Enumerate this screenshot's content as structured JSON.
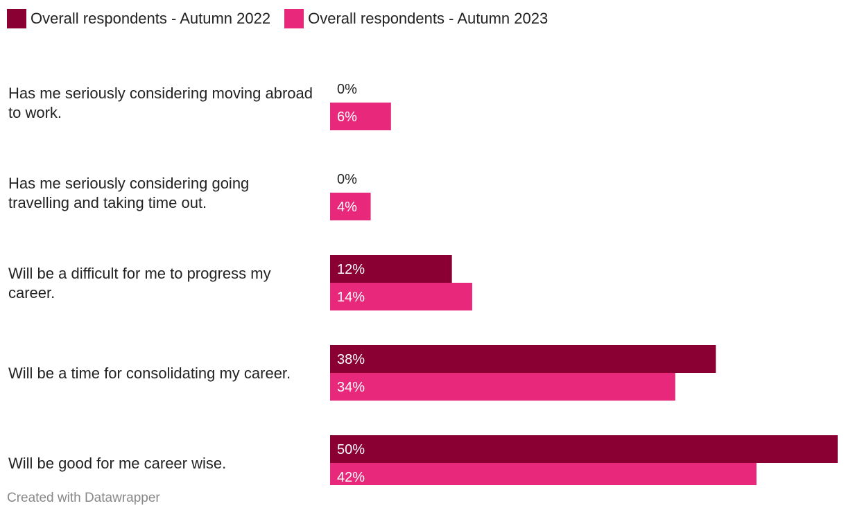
{
  "legend": [
    {
      "label": "Overall respondents - Autumn 2022",
      "color": "#8b0033"
    },
    {
      "label": "Overall respondents - Autumn 2023",
      "color": "#e8297b"
    }
  ],
  "chart_data": {
    "type": "bar",
    "orientation": "horizontal",
    "categories": [
      "Has me seriously considering moving abroad to work.",
      "Has me seriously considering going travelling and taking time out.",
      "Will be a difficult for me to progress my career.",
      "Will be a time for consolidating my career.",
      "Will be good for me career wise."
    ],
    "series": [
      {
        "name": "Overall respondents - Autumn 2022",
        "color": "#8b0033",
        "values": [
          0,
          0,
          12,
          38,
          50
        ]
      },
      {
        "name": "Overall respondents - Autumn 2023",
        "color": "#e8297b",
        "values": [
          6,
          4,
          14,
          34,
          42
        ]
      }
    ],
    "value_labels": [
      [
        "0%",
        "0%",
        "12%",
        "38%",
        "50%"
      ],
      [
        "6%",
        "4%",
        "14%",
        "34%",
        "42%"
      ]
    ],
    "xlim": [
      0,
      50
    ],
    "grid": false,
    "legend_position": "top-left"
  },
  "footer": {
    "credit": "Created with Datawrapper"
  }
}
